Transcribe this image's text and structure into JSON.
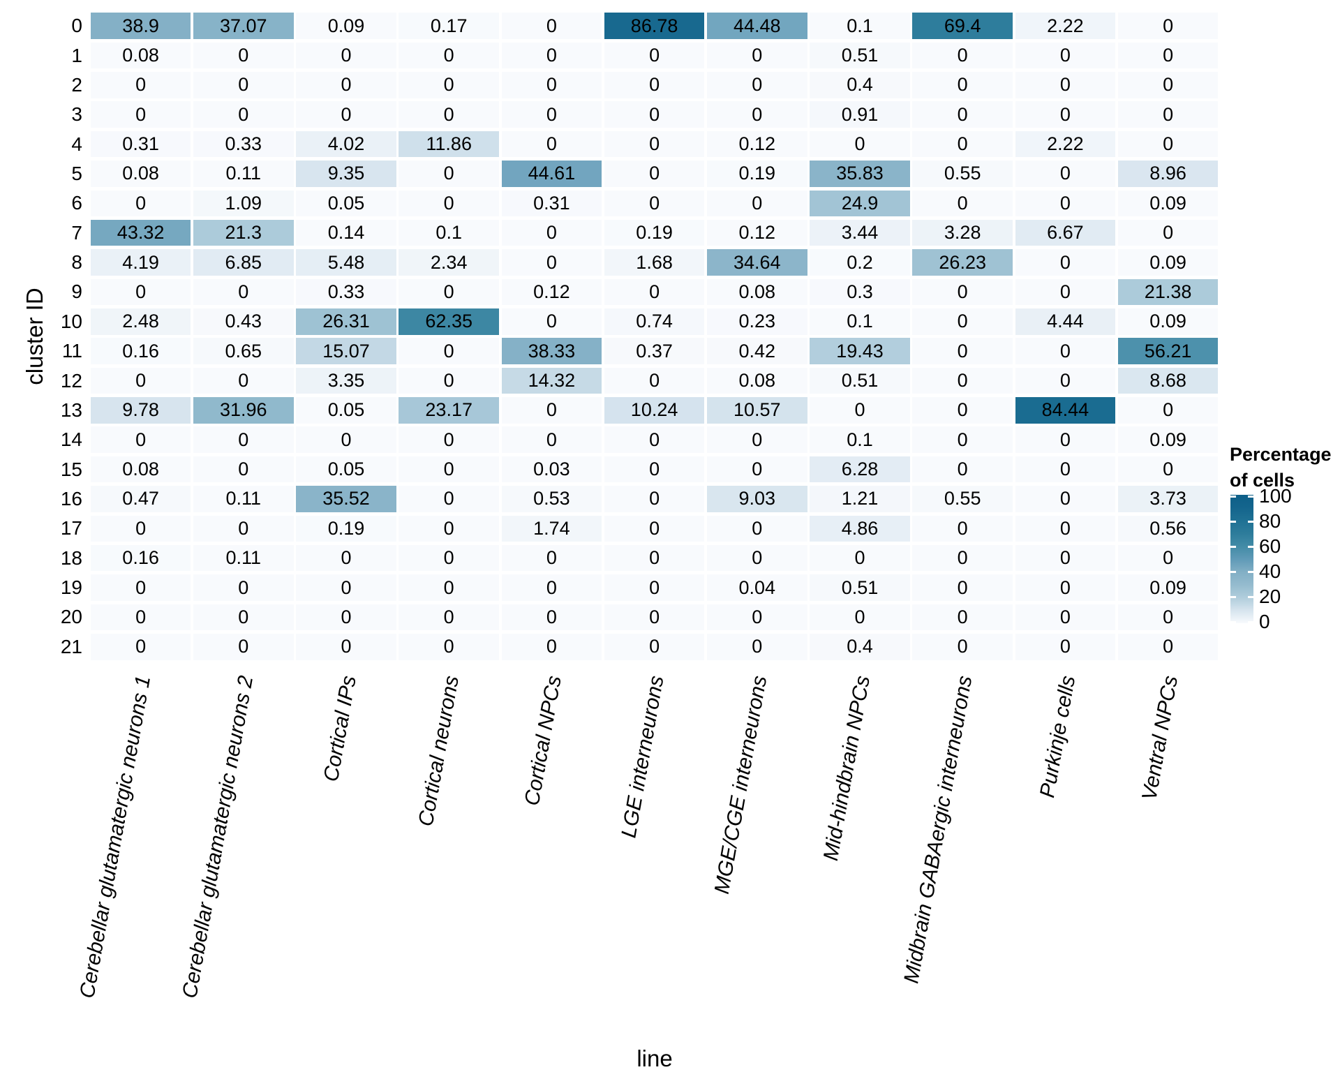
{
  "figure": {
    "background_color": "#FFFFFF",
    "text_color": "#000000"
  },
  "legend": {
    "title_line1": "Percentage",
    "title_line2": "of cells",
    "ticks": [
      100,
      80,
      60,
      40,
      20,
      0
    ]
  },
  "chart_data": {
    "type": "heatmap",
    "xlabel": "line",
    "ylabel": "cluster ID",
    "legend_title": "Percentage of cells",
    "legend_position": "right",
    "grid": false,
    "color_scale": {
      "limits": [
        0,
        100
      ],
      "stops": [
        {
          "value": 0,
          "color": "#F8FAFD"
        },
        {
          "value": 10,
          "color": "#D6E4EE"
        },
        {
          "value": 20,
          "color": "#B0CDDC"
        },
        {
          "value": 30,
          "color": "#94BBCE"
        },
        {
          "value": 40,
          "color": "#82AFC5"
        },
        {
          "value": 50,
          "color": "#5F9AB7"
        },
        {
          "value": 60,
          "color": "#428BA6"
        },
        {
          "value": 70,
          "color": "#2D7C9B"
        },
        {
          "value": 80,
          "color": "#1F7194"
        },
        {
          "value": 90,
          "color": "#14658D"
        },
        {
          "value": 100,
          "color": "#0D5F88"
        }
      ]
    },
    "categories": [
      "Cerebellar glutamatergic neurons 1",
      "Cerebellar glutamatergic neurons 2",
      "Cortical IPs",
      "Cortical neurons",
      "Cortical NPCs",
      "LGE interneurons",
      "MGE/CGE interneurons",
      "Mid-hindbrain NPCs",
      "Midbrain GABAergic interneurons",
      "Purkinje cells",
      "Ventral NPCs"
    ],
    "rows": [
      "0",
      "1",
      "2",
      "3",
      "4",
      "5",
      "6",
      "7",
      "8",
      "9",
      "10",
      "11",
      "12",
      "13",
      "14",
      "15",
      "16",
      "17",
      "18",
      "19",
      "20",
      "21"
    ],
    "values": [
      [
        38.9,
        37.07,
        0.09,
        0.17,
        0,
        86.78,
        44.48,
        0.1,
        69.4,
        2.22,
        0
      ],
      [
        0.08,
        0,
        0,
        0,
        0,
        0,
        0,
        0.51,
        0,
        0,
        0
      ],
      [
        0,
        0,
        0,
        0,
        0,
        0,
        0,
        0.4,
        0,
        0,
        0
      ],
      [
        0,
        0,
        0,
        0,
        0,
        0,
        0,
        0.91,
        0,
        0,
        0
      ],
      [
        0.31,
        0.33,
        4.02,
        11.86,
        0,
        0,
        0.12,
        0,
        0,
        2.22,
        0
      ],
      [
        0.08,
        0.11,
        9.35,
        0,
        44.61,
        0,
        0.19,
        35.83,
        0.55,
        0,
        8.96
      ],
      [
        0,
        1.09,
        0.05,
        0,
        0.31,
        0,
        0,
        24.9,
        0,
        0,
        0.09
      ],
      [
        43.32,
        21.3,
        0.14,
        0.1,
        0,
        0.19,
        0.12,
        3.44,
        3.28,
        6.67,
        0
      ],
      [
        4.19,
        6.85,
        5.48,
        2.34,
        0,
        1.68,
        34.64,
        0.2,
        26.23,
        0,
        0.09
      ],
      [
        0,
        0,
        0.33,
        0,
        0.12,
        0,
        0.08,
        0.3,
        0,
        0,
        21.38
      ],
      [
        2.48,
        0.43,
        26.31,
        62.35,
        0,
        0.74,
        0.23,
        0.1,
        0,
        4.44,
        0.09
      ],
      [
        0.16,
        0.65,
        15.07,
        0,
        38.33,
        0.37,
        0.42,
        19.43,
        0,
        0,
        56.21
      ],
      [
        0,
        0,
        3.35,
        0,
        14.32,
        0,
        0.08,
        0.51,
        0,
        0,
        8.68
      ],
      [
        9.78,
        31.96,
        0.05,
        23.17,
        0,
        10.24,
        10.57,
        0,
        0,
        84.44,
        0
      ],
      [
        0,
        0,
        0,
        0,
        0,
        0,
        0,
        0.1,
        0,
        0,
        0.09
      ],
      [
        0.08,
        0,
        0.05,
        0,
        0.03,
        0,
        0,
        6.28,
        0,
        0,
        0
      ],
      [
        0.47,
        0.11,
        35.52,
        0,
        0.53,
        0,
        9.03,
        1.21,
        0.55,
        0,
        3.73
      ],
      [
        0,
        0,
        0.19,
        0,
        1.74,
        0,
        0,
        4.86,
        0,
        0,
        0.56
      ],
      [
        0.16,
        0.11,
        0,
        0,
        0,
        0,
        0,
        0,
        0,
        0,
        0
      ],
      [
        0,
        0,
        0,
        0,
        0,
        0,
        0.04,
        0.51,
        0,
        0,
        0.09
      ],
      [
        0,
        0,
        0,
        0,
        0,
        0,
        0,
        0,
        0,
        0,
        0
      ],
      [
        0,
        0,
        0,
        0,
        0,
        0,
        0,
        0.4,
        0,
        0,
        0
      ]
    ]
  }
}
